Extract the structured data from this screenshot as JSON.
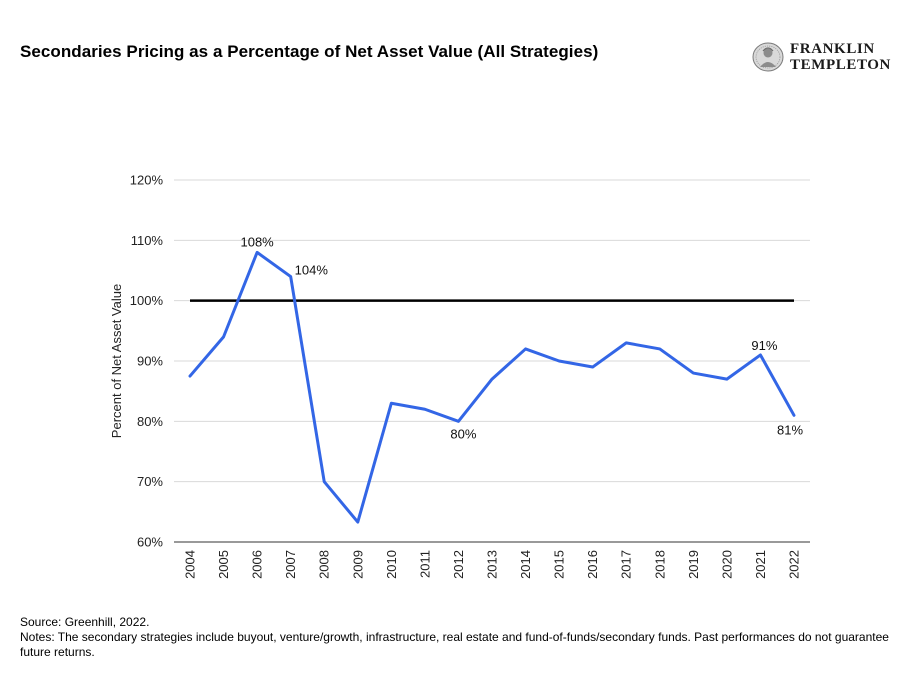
{
  "title": "Secondaries Pricing as a Percentage of Net Asset Value (All Strategies)",
  "logo": {
    "line1": "FRANKLIN",
    "line2": "TEMPLETON",
    "icon": "franklin-portrait-icon"
  },
  "chart_data": {
    "type": "line",
    "title": "Secondaries Pricing as a Percentage of Net Asset Value (All Strategies)",
    "xlabel": "",
    "ylabel": "Percent of Net Asset Value",
    "categories": [
      "2004",
      "2005",
      "2006",
      "2007",
      "2008",
      "2009",
      "2010",
      "2011",
      "2012",
      "2013",
      "2014",
      "2015",
      "2016",
      "2017",
      "2018",
      "2019",
      "2020",
      "2021",
      "2022"
    ],
    "series": [
      {
        "values": [
          87.5,
          94,
          108,
          104,
          70,
          63.3,
          83,
          82,
          80,
          87,
          92,
          90,
          89,
          93,
          92,
          88,
          87,
          91,
          81
        ],
        "color": "#3366e6"
      }
    ],
    "reference_line": {
      "value": 100,
      "color": "#000000"
    },
    "data_labels": [
      {
        "index": 2,
        "text": "108%"
      },
      {
        "index": 3,
        "text": "104%"
      },
      {
        "index": 8,
        "text": "80%"
      },
      {
        "index": 17,
        "text": "91%"
      },
      {
        "index": 18,
        "text": "81%"
      }
    ],
    "yticks": [
      "60%",
      "70%",
      "80%",
      "90%",
      "100%",
      "110%",
      "120%"
    ],
    "ylim": [
      60,
      120
    ],
    "grid": true,
    "legend": "none"
  },
  "footer": {
    "source": "Source: Greenhill, 2022.",
    "notes": "Notes: The secondary strategies include buyout, venture/growth, infrastructure, real estate and fund-of-funds/secondary funds. Past performances do not guarantee future returns."
  }
}
